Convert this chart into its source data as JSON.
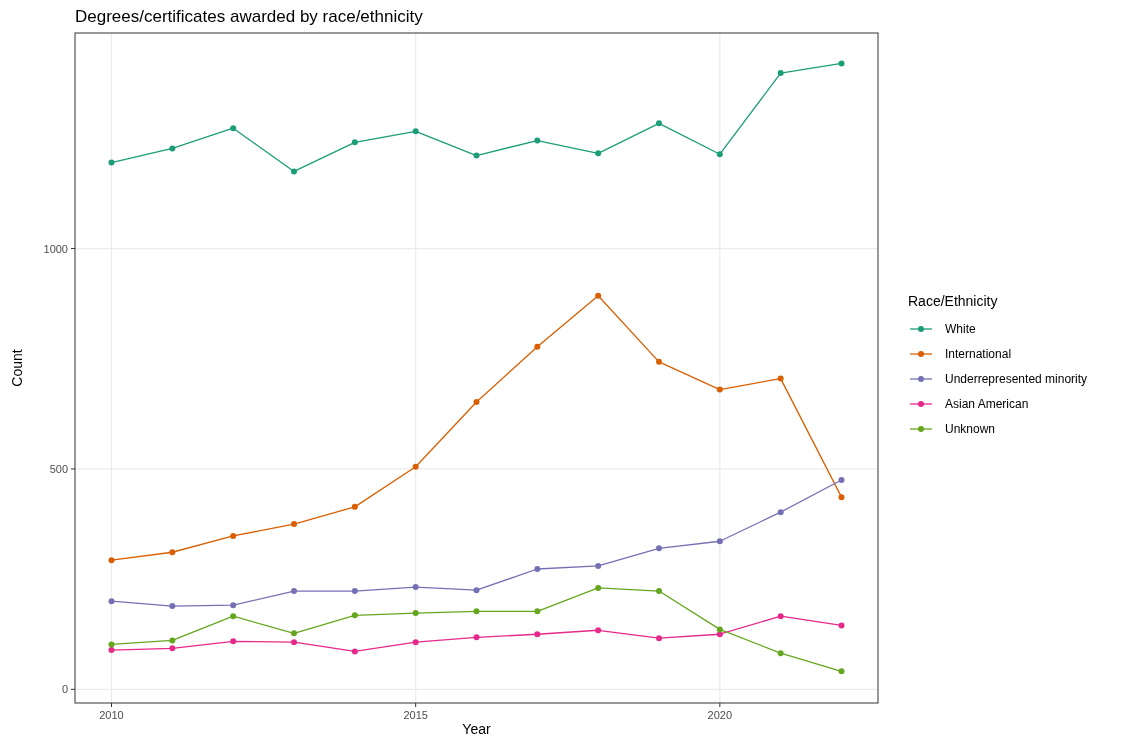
{
  "chart_data": {
    "type": "line",
    "title": "Degrees/certificates awarded by race/ethnicity",
    "xlabel": "Year",
    "ylabel": "Count",
    "legend_title": "Race/Ethnicity",
    "x": [
      2010,
      2011,
      2012,
      2013,
      2014,
      2015,
      2016,
      2017,
      2018,
      2019,
      2020,
      2021,
      2022
    ],
    "xlim": [
      2009.4,
      2022.6
    ],
    "xticks": [
      2010,
      2015,
      2020
    ],
    "ylim": [
      -31,
      1489
    ],
    "yticks": [
      0,
      500,
      1000
    ],
    "grid": true,
    "legend": "right",
    "marker": "circle",
    "line_style": "solid",
    "series": [
      {
        "name": "White",
        "color": "#1b9e77",
        "values": [
          1195,
          1227,
          1273,
          1175,
          1241,
          1266,
          1211,
          1245,
          1216,
          1284,
          1214,
          1398,
          1420
        ]
      },
      {
        "name": "International",
        "color": "#d95f02",
        "values": [
          293,
          311,
          348,
          375,
          414,
          505,
          652,
          777,
          893,
          743,
          680,
          705,
          436
        ]
      },
      {
        "name": "Underrepresented minority",
        "color": "#7570b3",
        "values": [
          200,
          189,
          191,
          223,
          223,
          232,
          225,
          273,
          280,
          320,
          336,
          402,
          475
        ]
      },
      {
        "name": "Asian American",
        "color": "#e7298a",
        "values": [
          89,
          93,
          109,
          107,
          86,
          107,
          118,
          125,
          134,
          116,
          125,
          166,
          145
        ]
      },
      {
        "name": "Unknown",
        "color": "#66a61e",
        "values": [
          102,
          111,
          166,
          127,
          168,
          173,
          177,
          177,
          230,
          223,
          136,
          82,
          41
        ]
      }
    ]
  }
}
